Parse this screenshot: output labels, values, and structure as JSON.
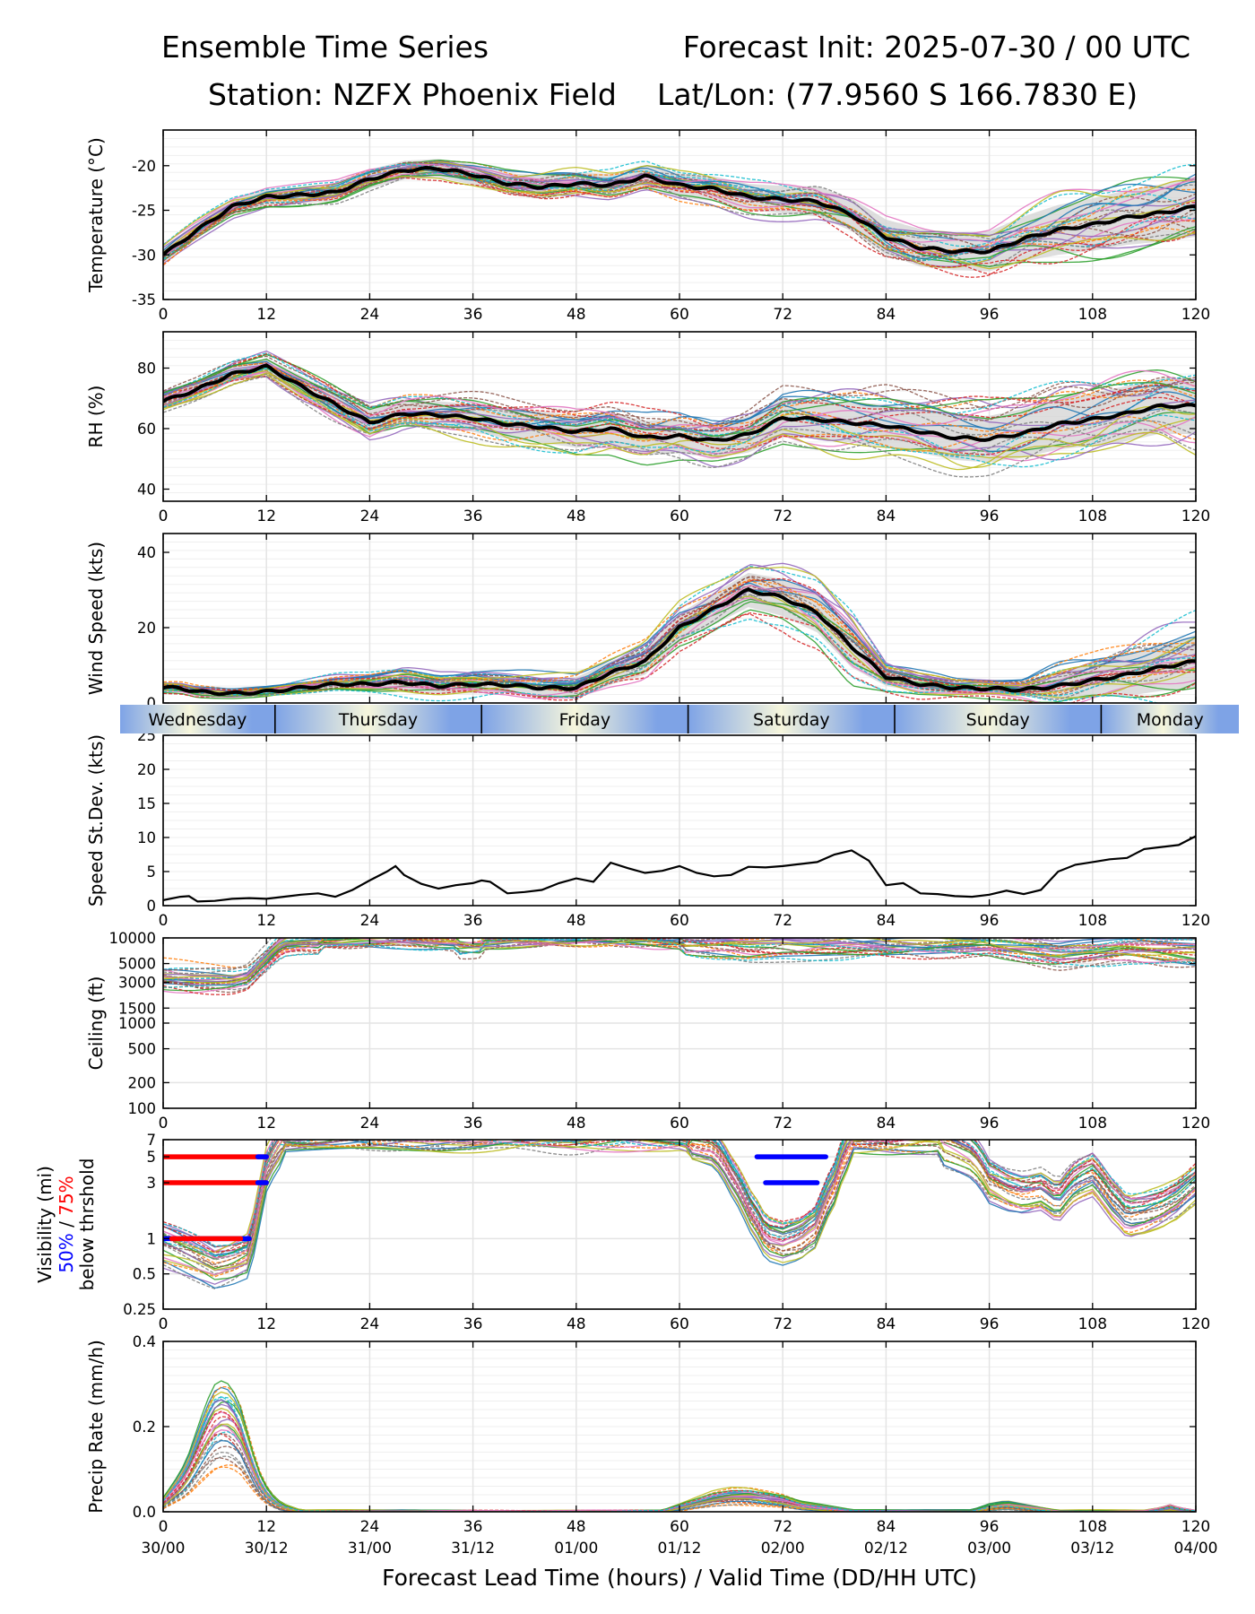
{
  "header": {
    "title_left": "Ensemble Time Series",
    "title_right": "Forecast Init: 2025-07-30 / 00 UTC",
    "station": "Station: NZFX Phoenix Field",
    "latlon": "Lat/Lon: (77.9560 S 166.7830 E)"
  },
  "colors": {
    "members": [
      "#1f77b4",
      "#ff7f0e",
      "#2ca02c",
      "#d62728",
      "#9467bd",
      "#8c564b",
      "#e377c2",
      "#7f7f7f",
      "#bcbd22",
      "#17becf"
    ],
    "mean": "#000000",
    "spread": "#d3d3d3",
    "vis_50": "#0000ff",
    "vis_75": "#ff0000",
    "day_band_light": "#f6f6dc",
    "day_band_dark": "#7ea3e6"
  },
  "chart_data": [
    {
      "type": "line",
      "ylabel": "Temperature (°C)",
      "ylim": [
        -35,
        -16
      ],
      "yticks": [
        "-35",
        "-30",
        "-25",
        "-20"
      ],
      "x": [
        0,
        4,
        8,
        12,
        16,
        20,
        24,
        28,
        32,
        36,
        40,
        44,
        48,
        52,
        56,
        60,
        64,
        68,
        72,
        76,
        80,
        84,
        88,
        92,
        96,
        100,
        104,
        108,
        112,
        116,
        120
      ],
      "mean": [
        -30,
        -27.2,
        -24.6,
        -23.5,
        -23.3,
        -23,
        -21.5,
        -20.5,
        -20.3,
        -21,
        -22,
        -22.4,
        -22,
        -22.2,
        -21.2,
        -22.2,
        -22.6,
        -23.5,
        -23.8,
        -24,
        -25.5,
        -28,
        -29.2,
        -29.6,
        -29.6,
        -28.2,
        -27.2,
        -26.6,
        -25.8,
        -25.3,
        -24.6
      ],
      "spread": [
        1.2,
        1.2,
        1.2,
        1.2,
        1.3,
        1.4,
        1.5,
        1.5,
        1.5,
        1.6,
        1.7,
        1.8,
        1.8,
        1.8,
        1.8,
        1.9,
        2,
        2.1,
        2.2,
        2.4,
        2.6,
        2.8,
        3,
        3,
        3.2,
        3.6,
        4,
        4.2,
        4.4,
        4.6,
        4.8
      ],
      "grid": true
    },
    {
      "type": "line",
      "ylabel": "RH (%)",
      "ylim": [
        36,
        92
      ],
      "yticks": [
        "40",
        "60",
        "80"
      ],
      "x": [
        0,
        4,
        8,
        12,
        16,
        20,
        24,
        28,
        32,
        36,
        40,
        44,
        48,
        52,
        56,
        60,
        64,
        68,
        72,
        76,
        80,
        84,
        88,
        92,
        96,
        100,
        104,
        108,
        112,
        116,
        120
      ],
      "mean": [
        69,
        73,
        78,
        80.5,
        74,
        68,
        62,
        65,
        64.5,
        63.5,
        61.5,
        60.5,
        59,
        60,
        57,
        57.5,
        56,
        58,
        63.5,
        63,
        62,
        61,
        59,
        57,
        56.5,
        58.5,
        61.5,
        63,
        65,
        67.5,
        67.5
      ],
      "spread": [
        3,
        3,
        3.5,
        4,
        5,
        5.5,
        6,
        6,
        6.5,
        6.5,
        7,
        7.5,
        7.5,
        7.5,
        8,
        8,
        8,
        8.5,
        9,
        9,
        9.5,
        10,
        10,
        10.5,
        11,
        11.5,
        12,
        12.5,
        13,
        13,
        13.5
      ],
      "grid": true
    },
    {
      "type": "line",
      "ylabel": "Wind Speed (kts)",
      "ylim": [
        0,
        45
      ],
      "yticks": [
        "0",
        "20",
        "40"
      ],
      "x": [
        0,
        2,
        4,
        8,
        12,
        16,
        20,
        24,
        28,
        32,
        36,
        40,
        44,
        48,
        52,
        56,
        60,
        64,
        68,
        72,
        76,
        80,
        84,
        88,
        92,
        96,
        100,
        104,
        108,
        112,
        116,
        120
      ],
      "mean": [
        4,
        4,
        3,
        2.5,
        3,
        4,
        5,
        5,
        5.5,
        4.5,
        5,
        4.8,
        4,
        4,
        8,
        11,
        20,
        25,
        30,
        28,
        24,
        15,
        7,
        5,
        4,
        3.8,
        3.5,
        4.5,
        6,
        7.5,
        9.5,
        11
      ],
      "spread": [
        1.5,
        1.5,
        1.5,
        1.2,
        1.5,
        1.8,
        2.2,
        2.5,
        3.5,
        3,
        3.5,
        3,
        3.5,
        4,
        4.5,
        5,
        5.5,
        6,
        6.5,
        7,
        7.5,
        8,
        3.5,
        3,
        2.2,
        2.3,
        2.5,
        5.5,
        6.5,
        8,
        9,
        10
      ],
      "grid": true
    },
    {
      "type": "line",
      "ylabel": "Speed St.Dev. (kts)",
      "ylim": [
        0,
        25
      ],
      "yticks": [
        "0",
        "5",
        "10",
        "15",
        "20",
        "25"
      ],
      "x": [
        0,
        2,
        3,
        4,
        6,
        8,
        10,
        12,
        14,
        16,
        18,
        20,
        22,
        24,
        26,
        27,
        28,
        30,
        32,
        34,
        36,
        37,
        38,
        40,
        42,
        44,
        46,
        48,
        50,
        52,
        54,
        56,
        58,
        60,
        62,
        64,
        66,
        68,
        70,
        72,
        74,
        76,
        78,
        80,
        82,
        84,
        86,
        88,
        90,
        92,
        94,
        96,
        98,
        100,
        102,
        104,
        106,
        108,
        110,
        112,
        114,
        116,
        118,
        120
      ],
      "values": [
        0.8,
        1.3,
        1.4,
        0.6,
        0.7,
        1,
        1.1,
        1,
        1.3,
        1.6,
        1.8,
        1.3,
        2.3,
        3.7,
        5,
        5.8,
        4.5,
        3.2,
        2.5,
        3,
        3.3,
        3.7,
        3.5,
        1.8,
        2,
        2.3,
        3.3,
        4,
        3.5,
        6.3,
        5.5,
        4.8,
        5.1,
        5.8,
        4.8,
        4.3,
        4.5,
        5.7,
        5.6,
        5.8,
        6.1,
        6.4,
        7.5,
        8.1,
        6.6,
        3,
        3.3,
        1.8,
        1.7,
        1.4,
        1.3,
        1.6,
        2.2,
        1.7,
        2.3,
        5,
        6,
        6.4,
        6.8,
        7,
        8.3,
        8.6,
        8.9,
        10.2
      ],
      "grid": true
    },
    {
      "type": "line",
      "ylabel": "Ceiling (ft)",
      "scale": "log",
      "ylim": [
        100,
        10000
      ],
      "yticks": [
        "100",
        "200",
        "500",
        "1000",
        "1500",
        "3000",
        "5000",
        "10000"
      ],
      "x": [
        0,
        4,
        8,
        10,
        12,
        14,
        16,
        20,
        24,
        30,
        36,
        40,
        44,
        48,
        54,
        60,
        66,
        68,
        72,
        78,
        84,
        90,
        96,
        100,
        104,
        108,
        112,
        116,
        120
      ],
      "member_median": [
        3500,
        3200,
        3100,
        3400,
        5500,
        8500,
        9300,
        9600,
        9800,
        9700,
        9400,
        9700,
        9900,
        10000,
        9900,
        9500,
        8700,
        8200,
        8500,
        8400,
        8200,
        8300,
        8400,
        7500,
        6800,
        7400,
        8100,
        7500,
        7200
      ],
      "grid": true
    },
    {
      "type": "line",
      "ylabel": "Visibility (mi)",
      "ylabel2": "below thrshold",
      "legend_50": "50%",
      "legend_sep": " / ",
      "legend_75": "75%",
      "scale": "log",
      "ylim": [
        0.25,
        7
      ],
      "yticks": [
        "0.25",
        "0.5",
        "1",
        "3",
        "5",
        "7"
      ],
      "x": [
        0,
        2,
        4,
        6,
        8,
        10,
        11,
        12,
        14,
        16,
        20,
        56,
        60,
        64,
        66,
        68,
        70,
        72,
        74,
        76,
        78,
        80,
        90,
        94,
        96,
        98,
        100,
        102,
        104,
        106,
        108,
        110,
        112,
        114,
        116,
        118,
        120
      ],
      "member_median": [
        0.9,
        0.8,
        0.7,
        0.6,
        0.65,
        0.75,
        1.5,
        4,
        7,
        7,
        7,
        7,
        7,
        6,
        3.5,
        1.8,
        1,
        0.9,
        1,
        1.3,
        3,
        7,
        7,
        5,
        3,
        2.5,
        2.3,
        2.5,
        2,
        3,
        3.5,
        2.2,
        1.5,
        1.6,
        1.8,
        2.2,
        3
      ],
      "threshold_bars": [
        {
          "level": 5,
          "series": "75%",
          "x": [
            0,
            12
          ]
        },
        {
          "level": 5,
          "series": "50%",
          "x": [
            11,
            12
          ]
        },
        {
          "level": 3,
          "series": "75%",
          "x": [
            0,
            12
          ]
        },
        {
          "level": 3,
          "series": "50%",
          "x": [
            11,
            12
          ]
        },
        {
          "level": 1,
          "series": "50%",
          "x": [
            0,
            10
          ]
        },
        {
          "level": 1,
          "series": "75%",
          "x": [
            1,
            9
          ]
        },
        {
          "level": 5,
          "series": "50%",
          "x": [
            69,
            77
          ]
        },
        {
          "level": 3,
          "series": "50%",
          "x": [
            70,
            76
          ]
        }
      ],
      "grid": true
    },
    {
      "type": "line",
      "ylabel": "Precip Rate (mm/h)",
      "ylim": [
        0,
        0.4
      ],
      "yticks": [
        "0.0",
        "0.2",
        "0.4"
      ],
      "x": [
        0,
        1,
        2,
        3,
        4,
        5,
        6,
        7,
        8,
        9,
        10,
        11,
        12,
        13,
        14,
        16,
        20,
        58,
        60,
        62,
        64,
        66,
        68,
        70,
        72,
        74,
        76,
        78,
        80,
        94,
        96,
        98,
        100,
        102,
        104,
        114,
        116,
        117,
        118,
        120
      ],
      "member_median": [
        0.02,
        0.04,
        0.06,
        0.09,
        0.13,
        0.17,
        0.2,
        0.21,
        0.2,
        0.17,
        0.12,
        0.07,
        0.04,
        0.02,
        0.01,
        0,
        0,
        0,
        0.01,
        0.02,
        0.03,
        0.035,
        0.035,
        0.03,
        0.025,
        0.015,
        0.01,
        0.005,
        0,
        0,
        0.01,
        0.015,
        0.01,
        0.005,
        0,
        0,
        0.005,
        0.01,
        0.005,
        0
      ],
      "grid": true
    }
  ],
  "shared_x": {
    "ticks": [
      "0",
      "12",
      "24",
      "36",
      "48",
      "60",
      "72",
      "84",
      "96",
      "108",
      "120"
    ],
    "valid_time_labels": [
      "30/00",
      "30/12",
      "31/00",
      "31/12",
      "01/00",
      "01/12",
      "02/00",
      "02/12",
      "03/00",
      "03/12",
      "04/00"
    ],
    "xlabel": "Forecast Lead Time (hours) / Valid Time (DD/HH UTC)",
    "xlim": [
      0,
      120
    ]
  },
  "day_bar": [
    {
      "label": "Wednesday",
      "x": [
        -5,
        13
      ]
    },
    {
      "label": "Thursday",
      "x": [
        13,
        37
      ]
    },
    {
      "label": "Friday",
      "x": [
        37,
        61
      ]
    },
    {
      "label": "Saturday",
      "x": [
        61,
        85
      ]
    },
    {
      "label": "Sunday",
      "x": [
        85,
        109
      ]
    },
    {
      "label": "Monday",
      "x": [
        109,
        125
      ]
    }
  ]
}
